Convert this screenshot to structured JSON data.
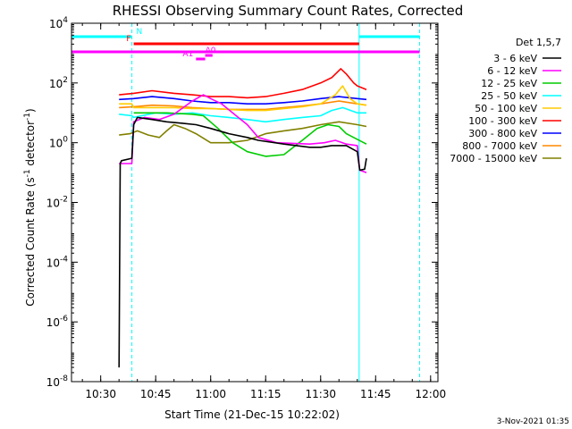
{
  "footer": {
    "date": "3-Nov-2021 01:35"
  },
  "chart_data": {
    "type": "line",
    "title": "RHESSI Observing Summary Count Rates, Corrected",
    "xlabel": "Start Time (21-Dec-15 10:22:02)",
    "ylabel_main": "Corrected Count Rate (s",
    "ylabel_sup": "-1",
    "ylabel_mid": " detector",
    "ylabel_end": ")",
    "yscale": "log",
    "xlim": [
      "10:22:02",
      "12:02:00"
    ],
    "ylim": [
      1e-08,
      10000.0
    ],
    "x_ticks": [
      "10:30",
      "10:45",
      "11:00",
      "11:15",
      "11:30",
      "11:45",
      "12:00"
    ],
    "y_ticks": [
      {
        "base": "10",
        "exp": "4",
        "value": 10000
      },
      {
        "base": "10",
        "exp": "2",
        "value": 100
      },
      {
        "base": "10",
        "exp": "0",
        "value": 1
      },
      {
        "base": "10",
        "exp": "-2",
        "value": 0.01
      },
      {
        "base": "10",
        "exp": "-4",
        "value": 0.0001
      },
      {
        "base": "10",
        "exp": "-6",
        "value": 1e-06
      },
      {
        "base": "10",
        "exp": "-8",
        "value": 1e-08
      }
    ],
    "legend_title": "Det 1,5,7",
    "legend_position": "right",
    "series": [
      {
        "name": "3 - 6 keV",
        "color": "#000000",
        "points": [
          [
            "10:35:00",
            3e-08
          ],
          [
            "10:35:20",
            0.2
          ],
          [
            "10:35:40",
            0.25
          ],
          [
            "10:38:30",
            0.3
          ],
          [
            "10:39:00",
            4
          ],
          [
            "10:40:00",
            7
          ],
          [
            "10:44:00",
            6
          ],
          [
            "10:48:00",
            5
          ],
          [
            "10:52:00",
            4.5
          ],
          [
            "10:56:00",
            4
          ],
          [
            "11:00:00",
            3
          ],
          [
            "11:05:00",
            2
          ],
          [
            "11:10:00",
            1.5
          ],
          [
            "11:13:00",
            1.2
          ],
          [
            "11:20:00",
            0.9
          ],
          [
            "11:27:00",
            0.7
          ],
          [
            "11:30:00",
            0.7
          ],
          [
            "11:33:00",
            0.8
          ],
          [
            "11:37:00",
            0.8
          ],
          [
            "11:40:00",
            0.5
          ],
          [
            "11:40:40",
            0.12
          ],
          [
            "11:42:00",
            0.13
          ],
          [
            "11:42:30",
            0.3
          ]
        ]
      },
      {
        "name": "6 - 12 keV",
        "color": "#ff00ff",
        "points": [
          [
            "10:35:00",
            0.2
          ],
          [
            "10:38:30",
            0.2
          ],
          [
            "10:39:00",
            5
          ],
          [
            "10:42:00",
            7
          ],
          [
            "10:46:00",
            6
          ],
          [
            "10:50:00",
            9
          ],
          [
            "10:55:00",
            25
          ],
          [
            "10:58:00",
            40
          ],
          [
            "11:00:00",
            30
          ],
          [
            "11:03:00",
            20
          ],
          [
            "11:06:00",
            10
          ],
          [
            "11:10:00",
            4
          ],
          [
            "11:13:00",
            1.5
          ],
          [
            "11:18:00",
            1
          ],
          [
            "11:27:00",
            0.9
          ],
          [
            "11:31:00",
            1
          ],
          [
            "11:34:00",
            1.2
          ],
          [
            "11:37:00",
            0.9
          ],
          [
            "11:40:00",
            0.8
          ],
          [
            "11:40:40",
            0.12
          ],
          [
            "11:42:30",
            0.1
          ]
        ]
      },
      {
        "name": "12 - 25 keV",
        "color": "#00cc00",
        "points": [
          [
            "10:39:00",
            10
          ],
          [
            "10:48:00",
            10
          ],
          [
            "10:55:00",
            9
          ],
          [
            "10:58:00",
            8
          ],
          [
            "11:02:00",
            3
          ],
          [
            "11:06:00",
            1
          ],
          [
            "11:10:00",
            0.5
          ],
          [
            "11:15:00",
            0.35
          ],
          [
            "11:20:00",
            0.4
          ],
          [
            "11:25:00",
            1.2
          ],
          [
            "11:29:00",
            3
          ],
          [
            "11:32:00",
            4
          ],
          [
            "11:35:00",
            3.5
          ],
          [
            "11:37:00",
            2
          ],
          [
            "11:40:00",
            1.3
          ],
          [
            "11:42:30",
            0.9
          ]
        ]
      },
      {
        "name": "25 - 50 keV",
        "color": "#00ffff",
        "points": [
          [
            "10:35:00",
            9
          ],
          [
            "10:38:30",
            8
          ],
          [
            "10:39:00",
            7
          ],
          [
            "10:45:00",
            10
          ],
          [
            "10:50:00",
            9
          ],
          [
            "10:55:00",
            10
          ],
          [
            "11:00:00",
            8
          ],
          [
            "11:05:00",
            7
          ],
          [
            "11:10:00",
            6
          ],
          [
            "11:15:00",
            5
          ],
          [
            "11:20:00",
            6
          ],
          [
            "11:25:00",
            7
          ],
          [
            "11:30:00",
            8
          ],
          [
            "11:33:00",
            12
          ],
          [
            "11:36:00",
            15
          ],
          [
            "11:40:00",
            10
          ],
          [
            "11:42:30",
            10
          ]
        ]
      },
      {
        "name": "50 - 100 keV",
        "color": "#ffcc00",
        "points": [
          [
            "10:35:00",
            20
          ],
          [
            "10:38:30",
            20
          ],
          [
            "10:39:00",
            15
          ],
          [
            "10:45:00",
            15
          ],
          [
            "10:50:00",
            15
          ],
          [
            "10:55:00",
            14
          ],
          [
            "11:00:00",
            14
          ],
          [
            "11:05:00",
            13
          ],
          [
            "11:10:00",
            12
          ],
          [
            "11:15:00",
            12
          ],
          [
            "11:20:00",
            14
          ],
          [
            "11:25:00",
            16
          ],
          [
            "11:30:00",
            20
          ],
          [
            "11:34:00",
            40
          ],
          [
            "11:36:00",
            80
          ],
          [
            "11:38:00",
            30
          ],
          [
            "11:40:00",
            20
          ],
          [
            "11:42:30",
            18
          ]
        ]
      },
      {
        "name": "100 - 300 keV",
        "color": "#ff0000",
        "points": [
          [
            "10:35:00",
            40
          ],
          [
            "10:39:00",
            45
          ],
          [
            "10:44:00",
            55
          ],
          [
            "10:50:00",
            45
          ],
          [
            "10:55:00",
            40
          ],
          [
            "11:00:00",
            35
          ],
          [
            "11:05:00",
            35
          ],
          [
            "11:10:00",
            32
          ],
          [
            "11:15:00",
            35
          ],
          [
            "11:20:00",
            45
          ],
          [
            "11:25:00",
            60
          ],
          [
            "11:30:00",
            100
          ],
          [
            "11:33:00",
            150
          ],
          [
            "11:35:30",
            300
          ],
          [
            "11:37:00",
            200
          ],
          [
            "11:39:00",
            100
          ],
          [
            "11:40:00",
            80
          ],
          [
            "11:42:30",
            60
          ]
        ]
      },
      {
        "name": "300 - 800 keV",
        "color": "#0000ff",
        "points": [
          [
            "10:35:00",
            28
          ],
          [
            "10:39:00",
            30
          ],
          [
            "10:44:00",
            35
          ],
          [
            "10:50:00",
            30
          ],
          [
            "10:55:00",
            25
          ],
          [
            "11:00:00",
            22
          ],
          [
            "11:05:00",
            22
          ],
          [
            "11:10:00",
            20
          ],
          [
            "11:15:00",
            20
          ],
          [
            "11:20:00",
            22
          ],
          [
            "11:25:00",
            25
          ],
          [
            "11:30:00",
            30
          ],
          [
            "11:35:00",
            35
          ],
          [
            "11:40:00",
            30
          ],
          [
            "11:42:30",
            28
          ]
        ]
      },
      {
        "name": "800 - 7000 keV",
        "color": "#ff8800",
        "points": [
          [
            "10:35:00",
            15
          ],
          [
            "10:39:00",
            16
          ],
          [
            "10:44:00",
            18
          ],
          [
            "10:50:00",
            17
          ],
          [
            "10:55:00",
            15
          ],
          [
            "11:00:00",
            14
          ],
          [
            "11:05:00",
            13
          ],
          [
            "11:10:00",
            13
          ],
          [
            "11:15:00",
            13
          ],
          [
            "11:20:00",
            15
          ],
          [
            "11:25:00",
            17
          ],
          [
            "11:30:00",
            20
          ],
          [
            "11:35:00",
            25
          ],
          [
            "11:40:00",
            20
          ],
          [
            "11:42:30",
            18
          ]
        ]
      },
      {
        "name": "7000 - 15000 keV",
        "color": "#808000",
        "points": [
          [
            "10:35:00",
            1.8
          ],
          [
            "10:38:00",
            2
          ],
          [
            "10:40:00",
            2.5
          ],
          [
            "10:43:00",
            1.8
          ],
          [
            "10:46:00",
            1.5
          ],
          [
            "10:48:00",
            2.5
          ],
          [
            "10:50:00",
            4
          ],
          [
            "10:53:00",
            3
          ],
          [
            "10:56:00",
            2
          ],
          [
            "11:00:00",
            1
          ],
          [
            "11:05:00",
            1
          ],
          [
            "11:10:00",
            1.2
          ],
          [
            "11:15:00",
            2
          ],
          [
            "11:20:00",
            2.5
          ],
          [
            "11:25:00",
            3
          ],
          [
            "11:30:00",
            4
          ],
          [
            "11:35:00",
            5
          ],
          [
            "11:40:00",
            4
          ],
          [
            "11:42:30",
            3.5
          ]
        ]
      }
    ],
    "flags": [
      {
        "label": "N",
        "color": "#00ffff",
        "start": "10:22:02",
        "end": "10:38:30",
        "level": "top"
      },
      {
        "label": "",
        "color": "#00ffff",
        "start": "11:40:30",
        "end": "11:57:00",
        "level": "top"
      },
      {
        "label": "F",
        "color": "#ff0000",
        "start": "10:39:00",
        "end": "11:40:30",
        "level": "second"
      },
      {
        "label": "",
        "color": "#ff00ff",
        "start": "10:22:02",
        "end": "11:57:00",
        "level": "third"
      },
      {
        "label": "A1",
        "color": "#ff00ff",
        "start": "10:56:00",
        "end": "10:58:30",
        "level": "fourth"
      },
      {
        "label": "A0",
        "color": "#ff00ff",
        "start": "10:58:30",
        "end": "11:00:30",
        "level": "third_b"
      }
    ],
    "vertical_lines": [
      {
        "time": "10:22:02",
        "color": "#00ffff",
        "style": "solid"
      },
      {
        "time": "10:38:30",
        "color": "#00ffff",
        "style": "dashed"
      },
      {
        "time": "11:40:30",
        "color": "#00ffff",
        "style": "solid"
      },
      {
        "time": "11:57:00",
        "color": "#00ffff",
        "style": "dashed"
      }
    ]
  }
}
